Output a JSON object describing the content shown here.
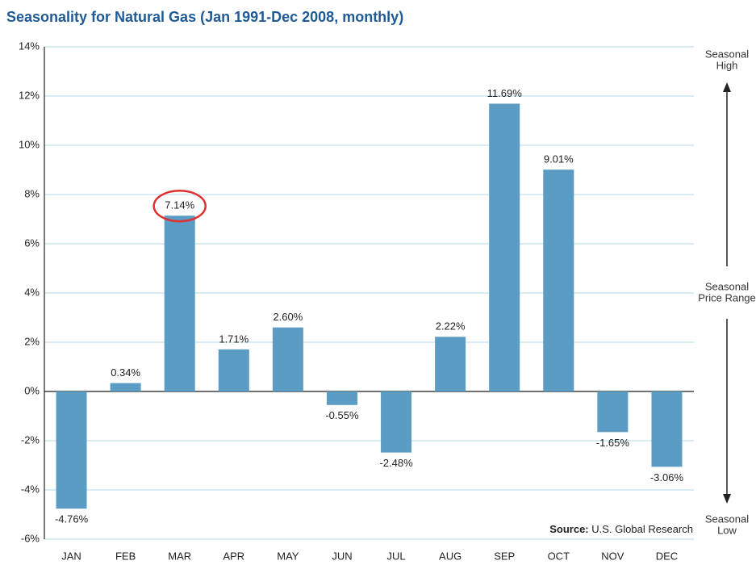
{
  "chart_data": {
    "type": "bar",
    "title": "Seasonality for Natural Gas (Jan 1991-Dec 2008, monthly)",
    "categories": [
      "JAN",
      "FEB",
      "MAR",
      "APR",
      "MAY",
      "JUN",
      "JUL",
      "AUG",
      "SEP",
      "OCT",
      "NOV",
      "DEC"
    ],
    "values": [
      -4.76,
      0.34,
      7.14,
      1.71,
      2.6,
      -0.55,
      -2.48,
      2.22,
      11.69,
      9.01,
      -1.65,
      -3.06
    ],
    "value_labels": [
      "-4.76%",
      "0.34%",
      "7.14%",
      "1.71%",
      "2.60%",
      "-0.55%",
      "-2.48%",
      "2.22%",
      "11.69%",
      "9.01%",
      "-1.65%",
      "-3.06%"
    ],
    "color": "#5a9cc4",
    "highlight_color": "#e03030",
    "highlight_index": 2,
    "ylim": [
      -6,
      14
    ],
    "yticks": [
      {
        "value": -6,
        "label": "-6%"
      },
      {
        "value": -4,
        "label": "-4%"
      },
      {
        "value": -2,
        "label": "-2%"
      },
      {
        "value": 0,
        "label": "0%"
      },
      {
        "value": 2,
        "label": "2%"
      },
      {
        "value": 4,
        "label": "4%"
      },
      {
        "value": 6,
        "label": "6%"
      },
      {
        "value": 8,
        "label": "8%"
      },
      {
        "value": 10,
        "label": "10%"
      },
      {
        "value": 12,
        "label": "12%"
      },
      {
        "value": 14,
        "label": "14%"
      }
    ],
    "grid": true,
    "side_labels": {
      "top": [
        "Seasonal",
        "High"
      ],
      "middle": [
        "Seasonal",
        "Price Range"
      ],
      "bottom": [
        "Seasonal",
        "Low"
      ]
    },
    "source_label": "Source:",
    "source_text": "U.S. Global Research"
  }
}
